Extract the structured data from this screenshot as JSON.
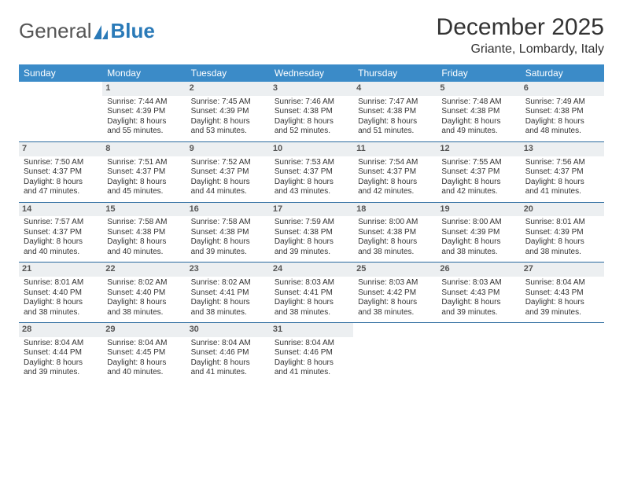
{
  "logo": {
    "text1": "General",
    "text2": "Blue"
  },
  "title": "December 2025",
  "location": "Griante, Lombardy, Italy",
  "colors": {
    "header_bg": "#3b8bc8",
    "header_text": "#ffffff",
    "daynum_bg": "#eceff1",
    "row_border": "#2a6a9e",
    "logo_blue": "#2a7ab8"
  },
  "dayHeaders": [
    "Sunday",
    "Monday",
    "Tuesday",
    "Wednesday",
    "Thursday",
    "Friday",
    "Saturday"
  ],
  "weeks": [
    [
      null,
      {
        "n": "1",
        "sr": "7:44 AM",
        "ss": "4:39 PM",
        "dl": "8 hours and 55 minutes."
      },
      {
        "n": "2",
        "sr": "7:45 AM",
        "ss": "4:39 PM",
        "dl": "8 hours and 53 minutes."
      },
      {
        "n": "3",
        "sr": "7:46 AM",
        "ss": "4:38 PM",
        "dl": "8 hours and 52 minutes."
      },
      {
        "n": "4",
        "sr": "7:47 AM",
        "ss": "4:38 PM",
        "dl": "8 hours and 51 minutes."
      },
      {
        "n": "5",
        "sr": "7:48 AM",
        "ss": "4:38 PM",
        "dl": "8 hours and 49 minutes."
      },
      {
        "n": "6",
        "sr": "7:49 AM",
        "ss": "4:38 PM",
        "dl": "8 hours and 48 minutes."
      }
    ],
    [
      {
        "n": "7",
        "sr": "7:50 AM",
        "ss": "4:37 PM",
        "dl": "8 hours and 47 minutes."
      },
      {
        "n": "8",
        "sr": "7:51 AM",
        "ss": "4:37 PM",
        "dl": "8 hours and 45 minutes."
      },
      {
        "n": "9",
        "sr": "7:52 AM",
        "ss": "4:37 PM",
        "dl": "8 hours and 44 minutes."
      },
      {
        "n": "10",
        "sr": "7:53 AM",
        "ss": "4:37 PM",
        "dl": "8 hours and 43 minutes."
      },
      {
        "n": "11",
        "sr": "7:54 AM",
        "ss": "4:37 PM",
        "dl": "8 hours and 42 minutes."
      },
      {
        "n": "12",
        "sr": "7:55 AM",
        "ss": "4:37 PM",
        "dl": "8 hours and 42 minutes."
      },
      {
        "n": "13",
        "sr": "7:56 AM",
        "ss": "4:37 PM",
        "dl": "8 hours and 41 minutes."
      }
    ],
    [
      {
        "n": "14",
        "sr": "7:57 AM",
        "ss": "4:37 PM",
        "dl": "8 hours and 40 minutes."
      },
      {
        "n": "15",
        "sr": "7:58 AM",
        "ss": "4:38 PM",
        "dl": "8 hours and 40 minutes."
      },
      {
        "n": "16",
        "sr": "7:58 AM",
        "ss": "4:38 PM",
        "dl": "8 hours and 39 minutes."
      },
      {
        "n": "17",
        "sr": "7:59 AM",
        "ss": "4:38 PM",
        "dl": "8 hours and 39 minutes."
      },
      {
        "n": "18",
        "sr": "8:00 AM",
        "ss": "4:38 PM",
        "dl": "8 hours and 38 minutes."
      },
      {
        "n": "19",
        "sr": "8:00 AM",
        "ss": "4:39 PM",
        "dl": "8 hours and 38 minutes."
      },
      {
        "n": "20",
        "sr": "8:01 AM",
        "ss": "4:39 PM",
        "dl": "8 hours and 38 minutes."
      }
    ],
    [
      {
        "n": "21",
        "sr": "8:01 AM",
        "ss": "4:40 PM",
        "dl": "8 hours and 38 minutes."
      },
      {
        "n": "22",
        "sr": "8:02 AM",
        "ss": "4:40 PM",
        "dl": "8 hours and 38 minutes."
      },
      {
        "n": "23",
        "sr": "8:02 AM",
        "ss": "4:41 PM",
        "dl": "8 hours and 38 minutes."
      },
      {
        "n": "24",
        "sr": "8:03 AM",
        "ss": "4:41 PM",
        "dl": "8 hours and 38 minutes."
      },
      {
        "n": "25",
        "sr": "8:03 AM",
        "ss": "4:42 PM",
        "dl": "8 hours and 38 minutes."
      },
      {
        "n": "26",
        "sr": "8:03 AM",
        "ss": "4:43 PM",
        "dl": "8 hours and 39 minutes."
      },
      {
        "n": "27",
        "sr": "8:04 AM",
        "ss": "4:43 PM",
        "dl": "8 hours and 39 minutes."
      }
    ],
    [
      {
        "n": "28",
        "sr": "8:04 AM",
        "ss": "4:44 PM",
        "dl": "8 hours and 39 minutes."
      },
      {
        "n": "29",
        "sr": "8:04 AM",
        "ss": "4:45 PM",
        "dl": "8 hours and 40 minutes."
      },
      {
        "n": "30",
        "sr": "8:04 AM",
        "ss": "4:46 PM",
        "dl": "8 hours and 41 minutes."
      },
      {
        "n": "31",
        "sr": "8:04 AM",
        "ss": "4:46 PM",
        "dl": "8 hours and 41 minutes."
      },
      null,
      null,
      null
    ]
  ],
  "labels": {
    "sunrise": "Sunrise: ",
    "sunset": "Sunset: ",
    "daylight": "Daylight: "
  }
}
